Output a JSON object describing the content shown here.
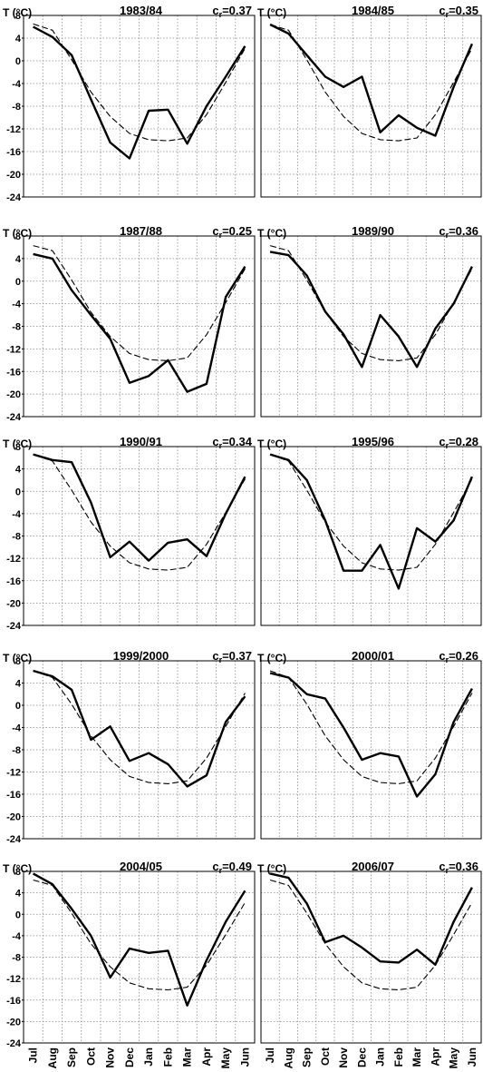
{
  "y_axis_label": "T (°C)",
  "chart_data": [
    {
      "type": "line",
      "title": "1983/84",
      "cr_label": "0.37",
      "ylabel": "T (°C)",
      "ylim": [
        -24,
        8
      ],
      "yticks": [
        8,
        4,
        0,
        -4,
        -8,
        -12,
        -16,
        -20,
        -24
      ],
      "categories": [
        "Jul",
        "Aug",
        "Sep",
        "Oct",
        "Nov",
        "Dec",
        "Jan",
        "Feb",
        "Mar",
        "Apr",
        "May",
        "Jun"
      ],
      "grid": true,
      "series": [
        {
          "style": "solid",
          "values": [
            6.0,
            4.2,
            1.0,
            -6.8,
            -14.4,
            -17.2,
            -8.8,
            -8.6,
            -14.6,
            -8.0,
            -2.8,
            2.6
          ]
        },
        {
          "style": "dashed",
          "values": [
            6.5,
            5.4,
            0.2,
            -5.5,
            -9.8,
            -12.8,
            -13.9,
            -14.1,
            -13.6,
            -9.5,
            -3.8,
            2.2
          ]
        }
      ]
    },
    {
      "type": "line",
      "title": "1984/85",
      "cr_label": "0.35",
      "ylabel": "",
      "ylim": [
        -24,
        8
      ],
      "yticks": [
        8,
        4,
        0,
        -4,
        -8,
        -12,
        -16,
        -20,
        -24
      ],
      "categories": [
        "Jul",
        "Aug",
        "Sep",
        "Oct",
        "Nov",
        "Dec",
        "Jan",
        "Feb",
        "Mar",
        "Apr",
        "May",
        "Jun"
      ],
      "grid": true,
      "series": [
        {
          "style": "solid",
          "values": [
            6.4,
            4.8,
            1.0,
            -2.8,
            -4.6,
            -2.8,
            -12.6,
            -9.6,
            -11.8,
            -13.2,
            -4.6,
            3.0
          ]
        },
        {
          "style": "dashed",
          "values": [
            6.4,
            5.4,
            0.2,
            -5.5,
            -9.8,
            -12.8,
            -13.9,
            -14.1,
            -13.6,
            -9.5,
            -3.8,
            2.2
          ]
        }
      ]
    },
    {
      "type": "line",
      "title": "1987/88",
      "cr_label": "0.25",
      "ylabel": "T (°C)",
      "ylim": [
        -24,
        8
      ],
      "yticks": [
        8,
        4,
        0,
        -4,
        -8,
        -12,
        -16,
        -20,
        -24
      ],
      "categories": [
        "Jul",
        "Aug",
        "Sep",
        "Oct",
        "Nov",
        "Dec",
        "Jan",
        "Feb",
        "Mar",
        "Apr",
        "May",
        "Jun"
      ],
      "grid": true,
      "series": [
        {
          "style": "solid",
          "values": [
            4.8,
            4.0,
            -1.6,
            -6.0,
            -10.2,
            -18.0,
            -16.8,
            -14.0,
            -19.6,
            -18.2,
            -2.8,
            2.6
          ]
        },
        {
          "style": "dashed",
          "values": [
            6.3,
            5.4,
            0.2,
            -5.5,
            -9.8,
            -12.8,
            -13.9,
            -14.1,
            -13.6,
            -9.5,
            -3.8,
            2.2
          ]
        }
      ]
    },
    {
      "type": "line",
      "title": "1989/90",
      "cr_label": "0.36",
      "ylabel": "",
      "ylim": [
        -24,
        8
      ],
      "yticks": [
        8,
        4,
        0,
        -4,
        -8,
        -12,
        -16,
        -20,
        -24
      ],
      "categories": [
        "Jul",
        "Aug",
        "Sep",
        "Oct",
        "Nov",
        "Dec",
        "Jan",
        "Feb",
        "Mar",
        "Apr",
        "May",
        "Jun"
      ],
      "grid": true,
      "series": [
        {
          "style": "solid",
          "values": [
            5.2,
            4.6,
            1.0,
            -5.4,
            -9.4,
            -15.2,
            -6.0,
            -9.8,
            -15.2,
            -8.4,
            -4.0,
            2.6
          ]
        },
        {
          "style": "dashed",
          "values": [
            6.3,
            5.4,
            0.2,
            -5.5,
            -9.8,
            -12.8,
            -13.9,
            -14.1,
            -13.6,
            -9.5,
            -3.8,
            2.2
          ]
        }
      ]
    },
    {
      "type": "line",
      "title": "1990/91",
      "cr_label": "0.34",
      "ylabel": "T (°C)",
      "ylim": [
        -24,
        8
      ],
      "yticks": [
        8,
        4,
        0,
        -4,
        -8,
        -12,
        -16,
        -20,
        -24
      ],
      "categories": [
        "Jul",
        "Aug",
        "Sep",
        "Oct",
        "Nov",
        "Dec",
        "Jan",
        "Feb",
        "Mar",
        "Apr",
        "May",
        "Jun"
      ],
      "grid": true,
      "series": [
        {
          "style": "solid",
          "values": [
            6.6,
            5.6,
            5.2,
            -2.0,
            -11.8,
            -9.0,
            -12.4,
            -9.2,
            -8.6,
            -11.6,
            -4.0,
            2.6
          ]
        },
        {
          "style": "dashed",
          "values": [
            6.6,
            5.4,
            0.2,
            -5.5,
            -9.8,
            -12.8,
            -13.9,
            -14.1,
            -13.6,
            -9.5,
            -3.8,
            2.2
          ]
        }
      ]
    },
    {
      "type": "line",
      "title": "1995/96",
      "cr_label": "0.28",
      "ylabel": "",
      "ylim": [
        -24,
        8
      ],
      "yticks": [
        8,
        4,
        0,
        -4,
        -8,
        -12,
        -16,
        -20,
        -24
      ],
      "categories": [
        "Jul",
        "Aug",
        "Sep",
        "Oct",
        "Nov",
        "Dec",
        "Jan",
        "Feb",
        "Mar",
        "Apr",
        "May",
        "Jun"
      ],
      "grid": true,
      "series": [
        {
          "style": "solid",
          "values": [
            6.6,
            5.6,
            2.0,
            -5.2,
            -14.2,
            -14.2,
            -9.6,
            -17.4,
            -6.6,
            -9.0,
            -5.2,
            2.6
          ]
        },
        {
          "style": "dashed",
          "values": [
            6.6,
            5.4,
            0.2,
            -5.5,
            -9.8,
            -12.8,
            -13.9,
            -14.1,
            -13.6,
            -9.5,
            -3.8,
            2.2
          ]
        }
      ]
    },
    {
      "type": "line",
      "title": "1999/2000",
      "cr_label": "0.37",
      "ylabel": "T (°C)",
      "ylim": [
        -24,
        8
      ],
      "yticks": [
        8,
        4,
        0,
        -4,
        -8,
        -12,
        -16,
        -20,
        -24
      ],
      "categories": [
        "Jul",
        "Aug",
        "Sep",
        "Oct",
        "Nov",
        "Dec",
        "Jan",
        "Feb",
        "Mar",
        "Apr",
        "May",
        "Jun"
      ],
      "grid": true,
      "series": [
        {
          "style": "solid",
          "values": [
            6.2,
            5.2,
            2.8,
            -6.2,
            -3.8,
            -10.0,
            -8.6,
            -10.6,
            -14.6,
            -12.6,
            -3.0,
            1.6
          ]
        },
        {
          "style": "dashed",
          "values": [
            6.2,
            5.0,
            0.2,
            -5.5,
            -9.8,
            -12.8,
            -13.9,
            -14.1,
            -13.6,
            -9.5,
            -3.8,
            2.2
          ]
        }
      ]
    },
    {
      "type": "line",
      "title": "2000/01",
      "cr_label": "0.26",
      "ylabel": "",
      "ylim": [
        -24,
        8
      ],
      "yticks": [
        8,
        4,
        0,
        -4,
        -8,
        -12,
        -16,
        -20,
        -24
      ],
      "categories": [
        "Jul",
        "Aug",
        "Sep",
        "Oct",
        "Nov",
        "Dec",
        "Jan",
        "Feb",
        "Mar",
        "Apr",
        "May",
        "Jun"
      ],
      "grid": true,
      "series": [
        {
          "style": "solid",
          "values": [
            5.8,
            5.0,
            2.0,
            1.2,
            -4.0,
            -9.8,
            -8.6,
            -9.2,
            -16.4,
            -12.4,
            -3.0,
            3.0
          ]
        },
        {
          "style": "dashed",
          "values": [
            6.2,
            5.0,
            0.2,
            -5.5,
            -9.8,
            -12.8,
            -13.9,
            -14.1,
            -13.6,
            -9.5,
            -3.8,
            2.2
          ]
        }
      ]
    },
    {
      "type": "line",
      "title": "2004/05",
      "cr_label": "0.49",
      "ylabel": "T (°C)",
      "ylim": [
        -24,
        8
      ],
      "yticks": [
        8,
        4,
        0,
        -4,
        -8,
        -12,
        -16,
        -20,
        -24
      ],
      "categories": [
        "Jul",
        "Aug",
        "Sep",
        "Oct",
        "Nov",
        "Dec",
        "Jan",
        "Feb",
        "Mar",
        "Apr",
        "May",
        "Jun"
      ],
      "grid": true,
      "series": [
        {
          "style": "solid",
          "values": [
            7.6,
            5.6,
            1.0,
            -4.0,
            -11.8,
            -6.4,
            -7.2,
            -6.8,
            -17.0,
            -8.6,
            -1.4,
            4.4
          ]
        },
        {
          "style": "dashed",
          "values": [
            6.4,
            5.4,
            0.2,
            -5.5,
            -9.8,
            -12.8,
            -13.9,
            -14.1,
            -13.6,
            -9.5,
            -3.8,
            2.2
          ]
        }
      ]
    },
    {
      "type": "line",
      "title": "2006/07",
      "cr_label": "0.36",
      "ylabel": "",
      "ylim": [
        -24,
        8
      ],
      "yticks": [
        8,
        4,
        0,
        -4,
        -8,
        -12,
        -16,
        -20,
        -24
      ],
      "categories": [
        "Jul",
        "Aug",
        "Sep",
        "Oct",
        "Nov",
        "Dec",
        "Jan",
        "Feb",
        "Mar",
        "Apr",
        "May",
        "Jun"
      ],
      "grid": true,
      "series": [
        {
          "style": "solid",
          "values": [
            7.6,
            6.8,
            2.0,
            -5.2,
            -4.0,
            -6.2,
            -8.8,
            -9.0,
            -6.6,
            -9.4,
            -1.4,
            5.0
          ]
        },
        {
          "style": "dashed",
          "values": [
            6.4,
            5.4,
            0.2,
            -5.5,
            -9.8,
            -12.8,
            -13.9,
            -14.1,
            -13.6,
            -9.5,
            -3.8,
            2.2
          ]
        }
      ]
    }
  ]
}
